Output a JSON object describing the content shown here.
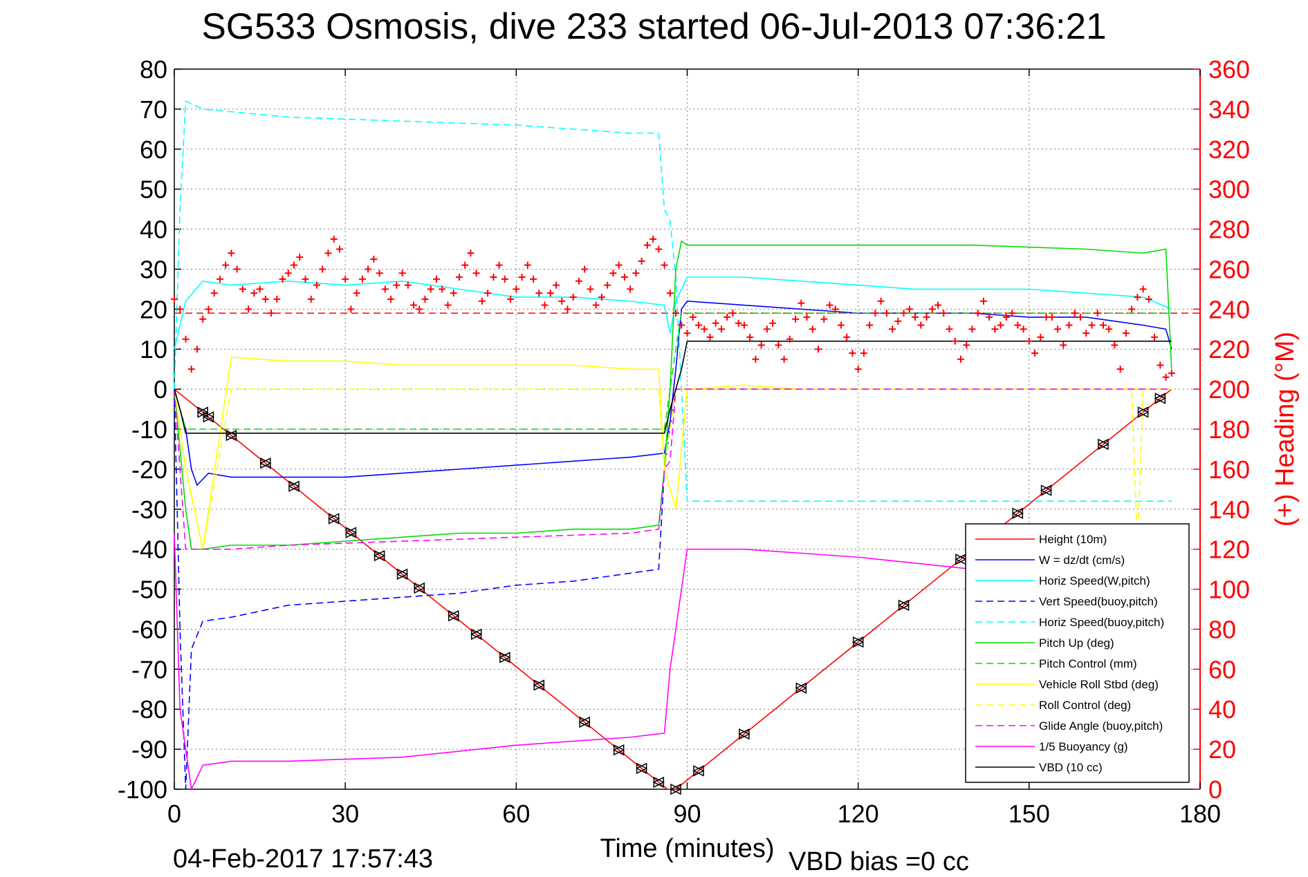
{
  "chart_data": {
    "type": "line",
    "title": "SG533 Osmosis, dive 233 started 06-Jul-2013 07:36:21",
    "xlabel": "Time (minutes)",
    "ylabel_right": "(+) Heading (°M)",
    "xlim": [
      0,
      180
    ],
    "ylim": [
      -100,
      80
    ],
    "ylim_right": [
      0,
      360
    ],
    "xticks": [
      "0",
      "30",
      "60",
      "90",
      "120",
      "150",
      "180"
    ],
    "yticks": [
      "80",
      "70",
      "60",
      "50",
      "40",
      "30",
      "20",
      "10",
      "0",
      "-10",
      "-20",
      "-30",
      "-40",
      "-50",
      "-60",
      "-70",
      "-80",
      "-90",
      "-100"
    ],
    "yticks_right": [
      "360",
      "340",
      "320",
      "300",
      "280",
      "260",
      "240",
      "220",
      "200",
      "180",
      "160",
      "140",
      "120",
      "100",
      "80",
      "60",
      "40",
      "20",
      "0"
    ],
    "grid": true,
    "legend_position": "bottom-right",
    "footer_left": "04-Feb-2017 17:57:43",
    "footer_right": "VBD bias =0 cc",
    "series": [
      {
        "name": "Height (10m)",
        "color": "#ff0000",
        "style": "solid",
        "x": [
          0,
          86.5,
          88,
          175
        ],
        "y": [
          0,
          -100,
          -100,
          0
        ]
      },
      {
        "name": "W = dz/dt (cm/s)",
        "color": "#0000ff",
        "style": "solid",
        "x": [
          0,
          1,
          2,
          3,
          4,
          6,
          10,
          20,
          30,
          40,
          50,
          60,
          70,
          80,
          86,
          87,
          88,
          89,
          90,
          100,
          110,
          120,
          130,
          140,
          150,
          160,
          170,
          174,
          175
        ],
        "y": [
          0,
          -5,
          -10,
          -20,
          -24,
          -21,
          -22,
          -22,
          -22,
          -21,
          -20,
          -19,
          -18,
          -17,
          -16,
          -8,
          5,
          20,
          22,
          21,
          20,
          19,
          19,
          19,
          18,
          18,
          16,
          15,
          10
        ]
      },
      {
        "name": "Horiz Speed(W,pitch)",
        "color": "#00ffff",
        "style": "solid",
        "x": [
          0,
          2,
          5,
          10,
          20,
          30,
          40,
          50,
          60,
          70,
          80,
          86,
          87,
          88,
          90,
          100,
          110,
          120,
          130,
          140,
          150,
          160,
          170,
          175
        ],
        "y": [
          10,
          22,
          27,
          26,
          27,
          26,
          27,
          25,
          23,
          23,
          22,
          21,
          14,
          22,
          28,
          28,
          27,
          26,
          25,
          25,
          25,
          24,
          23,
          20
        ]
      },
      {
        "name": "Vert Speed(buoy,pitch)",
        "color": "#0000ff",
        "style": "dashed",
        "x": [
          0,
          1,
          2,
          3,
          5,
          10,
          20,
          30,
          40,
          50,
          60,
          70,
          80,
          85,
          86,
          87,
          88,
          90,
          100,
          120,
          140,
          160,
          175
        ],
        "y": [
          0,
          -60,
          -100,
          -65,
          -58,
          -57,
          -54,
          -53,
          -52,
          -51,
          -49,
          -48,
          -46,
          -45,
          -20,
          -10,
          0,
          0,
          0,
          0,
          0,
          0,
          0
        ]
      },
      {
        "name": "Horiz Speed(buoy,pitch)",
        "color": "#00ffff",
        "style": "dashed",
        "x": [
          0,
          1,
          2,
          5,
          20,
          40,
          60,
          80,
          85,
          86,
          87,
          88,
          90,
          100,
          130,
          160,
          175
        ],
        "y": [
          0,
          45,
          72,
          70,
          68,
          67,
          66,
          64,
          64,
          45,
          42,
          28,
          -28,
          -28,
          -28,
          -28,
          -28
        ]
      },
      {
        "name": "Pitch Up (deg)",
        "color": "#00dd00",
        "style": "solid",
        "x": [
          0,
          2,
          3,
          5,
          10,
          20,
          30,
          40,
          50,
          60,
          70,
          80,
          85,
          86,
          87,
          88,
          89,
          90,
          100,
          120,
          140,
          160,
          170,
          174,
          175
        ],
        "y": [
          0,
          -30,
          -40,
          -40,
          -39,
          -39,
          -38,
          -37,
          -36,
          -36,
          -35,
          -35,
          -34,
          -20,
          0,
          30,
          37,
          36,
          36,
          36,
          36,
          35,
          34,
          35,
          5
        ]
      },
      {
        "name": "Pitch Control (mm)",
        "color": "#00dd00",
        "style": "dashed",
        "x": [
          0,
          1,
          2,
          10,
          86,
          87,
          88,
          89,
          175
        ],
        "y": [
          0,
          -5,
          -10,
          -10,
          -10,
          0,
          10,
          19,
          19
        ]
      },
      {
        "name": "Vehicle Roll Stbd (deg)",
        "color": "#ffff00",
        "style": "solid",
        "x": [
          0,
          2,
          5,
          10,
          20,
          30,
          40,
          50,
          60,
          70,
          80,
          85,
          86,
          88,
          90,
          100,
          110,
          120,
          130,
          140,
          150,
          160,
          170,
          175
        ],
        "y": [
          0,
          -20,
          -40,
          8,
          7,
          7,
          6,
          6,
          6,
          6,
          5,
          5,
          -20,
          -30,
          0,
          1,
          0,
          0,
          0,
          0,
          0,
          0,
          0,
          0
        ]
      },
      {
        "name": "Roll Control (deg)",
        "color": "#ffff00",
        "style": "dashed",
        "x": [
          0,
          2,
          5,
          10,
          20,
          40,
          60,
          80,
          85,
          86,
          88,
          90,
          100,
          130,
          160,
          168,
          169,
          170,
          175
        ],
        "y": [
          0,
          -20,
          -40,
          0,
          0,
          0,
          0,
          0,
          0,
          -20,
          0,
          0,
          0,
          0,
          0,
          0,
          -40,
          0,
          0
        ]
      },
      {
        "name": "Glide Angle (buoy,pitch)",
        "color": "#ff00ff",
        "style": "dashed",
        "x": [
          0,
          2,
          5,
          10,
          20,
          40,
          60,
          80,
          85,
          86,
          87,
          88,
          90,
          175
        ],
        "y": [
          0,
          -40,
          -40,
          -40,
          -39,
          -38,
          -37,
          -36,
          -35,
          -20,
          -18,
          0,
          0,
          0
        ]
      },
      {
        "name": "1/5 Buoyancy (g)",
        "color": "#ff00ff",
        "style": "solid",
        "x": [
          0,
          1,
          3,
          4,
          5,
          10,
          20,
          40,
          60,
          80,
          86,
          87,
          88,
          90,
          100,
          120,
          140
        ],
        "y": [
          -36,
          -80,
          -100,
          -97,
          -94,
          -93,
          -93,
          -92,
          -89,
          -87,
          -86,
          -70,
          -60,
          -40,
          -40,
          -42,
          -45
        ]
      },
      {
        "name": "VBD (10 cc)",
        "color": "#000000",
        "style": "solid",
        "x": [
          0,
          1,
          2,
          10,
          40,
          60,
          86,
          87,
          88,
          89,
          90,
          175
        ],
        "y": [
          0,
          -5,
          -11,
          -11,
          -11,
          -11,
          -11,
          -5,
          0,
          5,
          12,
          12
        ]
      }
    ],
    "heading": {
      "name": "Heading",
      "color": "#ff0000",
      "marker": "+",
      "mean": 238,
      "x": [
        0,
        1,
        2,
        3,
        4,
        5,
        6,
        7,
        8,
        9,
        10,
        11,
        12,
        13,
        14,
        15,
        16,
        17,
        18,
        19,
        20,
        21,
        22,
        23,
        24,
        25,
        26,
        27,
        28,
        29,
        30,
        31,
        32,
        33,
        34,
        35,
        36,
        37,
        38,
        39,
        40,
        41,
        42,
        43,
        44,
        45,
        46,
        47,
        48,
        49,
        50,
        51,
        52,
        53,
        54,
        55,
        56,
        57,
        58,
        59,
        60,
        61,
        62,
        63,
        64,
        65,
        66,
        67,
        68,
        69,
        70,
        71,
        72,
        73,
        74,
        75,
        76,
        77,
        78,
        79,
        80,
        81,
        82,
        83,
        84,
        85,
        86,
        87,
        88,
        89,
        90,
        91,
        92,
        93,
        94,
        95,
        96,
        97,
        98,
        99,
        100,
        101,
        102,
        103,
        104,
        105,
        106,
        107,
        108,
        109,
        110,
        111,
        112,
        113,
        114,
        115,
        116,
        117,
        118,
        119,
        120,
        121,
        122,
        123,
        124,
        125,
        126,
        127,
        128,
        129,
        130,
        131,
        132,
        133,
        134,
        135,
        136,
        137,
        138,
        139,
        140,
        141,
        142,
        143,
        144,
        145,
        146,
        147,
        148,
        149,
        150,
        151,
        152,
        153,
        154,
        155,
        156,
        157,
        158,
        159,
        160,
        161,
        162,
        163,
        164,
        165,
        166,
        167,
        168,
        169,
        170,
        171,
        172,
        173,
        174,
        175
      ],
      "y": [
        245,
        240,
        225,
        210,
        220,
        235,
        240,
        248,
        255,
        262,
        268,
        260,
        250,
        240,
        248,
        250,
        245,
        238,
        245,
        255,
        258,
        262,
        266,
        255,
        245,
        252,
        260,
        268,
        275,
        270,
        255,
        240,
        248,
        255,
        260,
        265,
        258,
        250,
        245,
        252,
        258,
        252,
        242,
        240,
        245,
        250,
        255,
        250,
        242,
        248,
        256,
        262,
        268,
        258,
        244,
        248,
        256,
        262,
        255,
        245,
        250,
        256,
        262,
        255,
        248,
        242,
        248,
        252,
        244,
        240,
        246,
        254,
        260,
        250,
        242,
        246,
        252,
        258,
        262,
        256,
        250,
        258,
        264,
        272,
        275,
        270,
        262,
        248,
        238,
        232,
        228,
        236,
        232,
        230,
        226,
        233,
        230,
        236,
        238,
        233,
        232,
        226,
        215,
        222,
        230,
        233,
        222,
        215,
        225,
        235,
        243,
        236,
        230,
        220,
        235,
        242,
        240,
        232,
        226,
        218,
        210,
        218,
        232,
        238,
        244,
        238,
        230,
        234,
        238,
        240,
        236,
        232,
        236,
        240,
        242,
        238,
        230,
        224,
        215,
        222,
        230,
        238,
        244,
        236,
        230,
        232,
        236,
        238,
        232,
        230,
        224,
        218,
        226,
        236,
        236,
        230,
        222,
        232,
        238,
        236,
        228,
        232,
        238,
        232,
        230,
        222,
        210,
        228,
        240,
        246,
        250,
        245,
        226,
        212,
        206,
        208
      ]
    }
  }
}
